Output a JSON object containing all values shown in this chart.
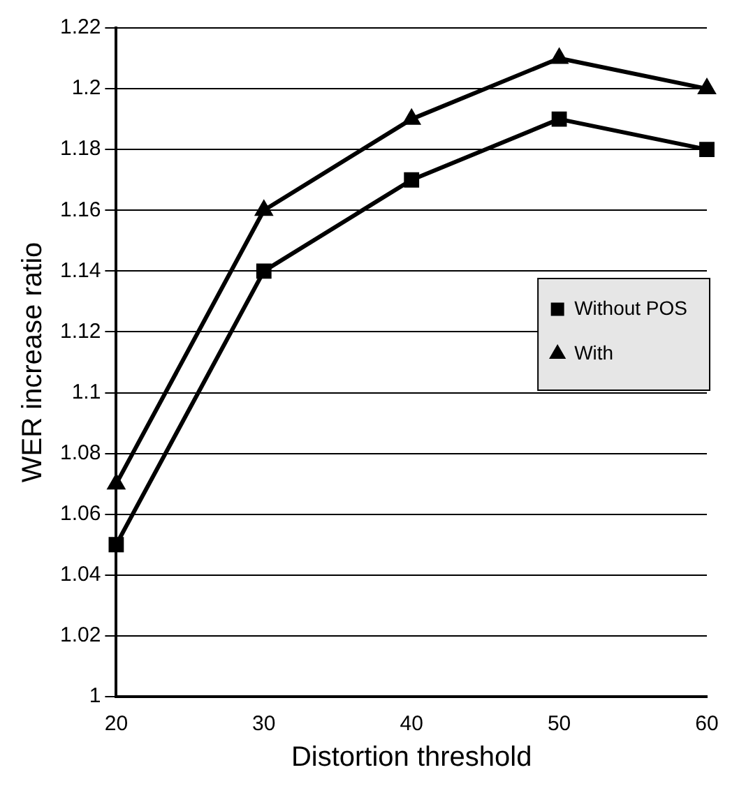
{
  "chart_data": {
    "type": "line",
    "xlabel": "Distortion threshold",
    "ylabel": "WER increase ratio",
    "x": [
      20,
      30,
      40,
      50,
      60
    ],
    "series": [
      {
        "name": "Without POS",
        "color": "#000000",
        "marker": "square",
        "values": [
          1.05,
          1.14,
          1.17,
          1.19,
          1.18
        ]
      },
      {
        "name": "With",
        "color": "#000000",
        "marker": "triangle",
        "values": [
          1.07,
          1.16,
          1.19,
          1.21,
          1.2
        ]
      }
    ],
    "xlim": [
      20,
      60
    ],
    "xticks": [
      20,
      30,
      40,
      50,
      60
    ],
    "ylim": [
      1,
      1.22
    ],
    "yticks": [
      1,
      1.02,
      1.04,
      1.06,
      1.08,
      1.1,
      1.12,
      1.14,
      1.16,
      1.18,
      1.2,
      1.22
    ],
    "grid": "y",
    "legend": "right",
    "line_style": "solid"
  }
}
